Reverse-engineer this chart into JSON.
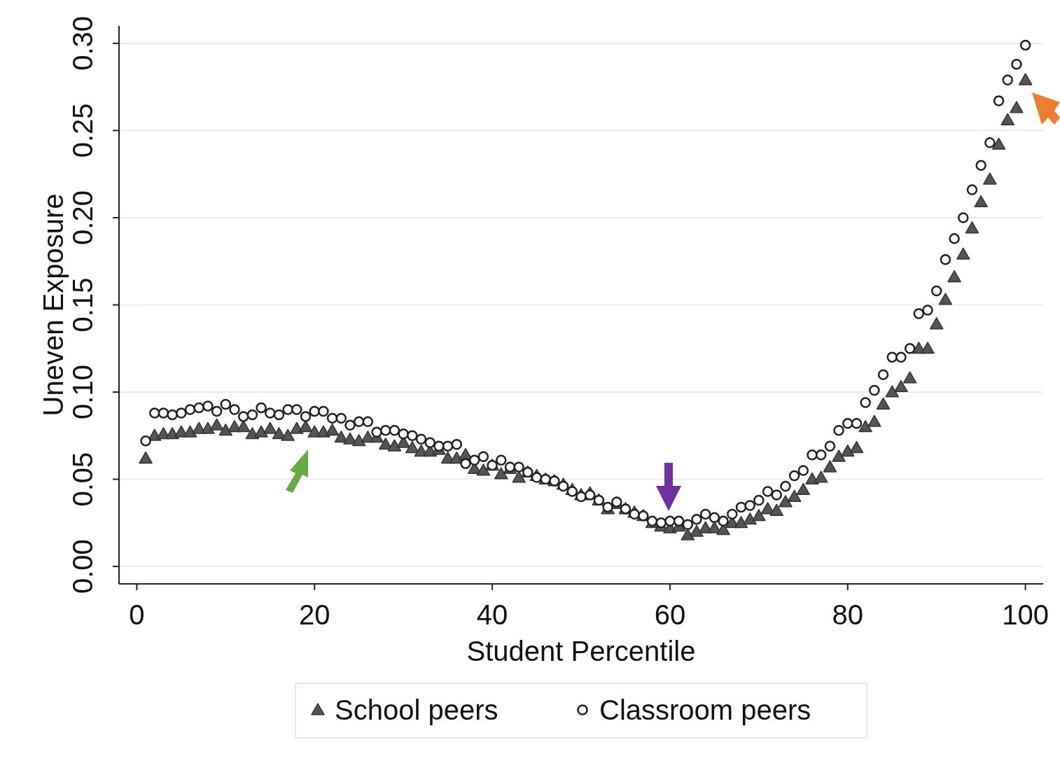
{
  "chart_data": {
    "type": "scatter",
    "xlabel": "Student Percentile",
    "ylabel": "Uneven Exposure",
    "x": [
      1,
      2,
      3,
      4,
      5,
      6,
      7,
      8,
      9,
      10,
      11,
      12,
      13,
      14,
      15,
      16,
      17,
      18,
      19,
      20,
      21,
      22,
      23,
      24,
      25,
      26,
      27,
      28,
      29,
      30,
      31,
      32,
      33,
      34,
      35,
      36,
      37,
      38,
      39,
      40,
      41,
      42,
      43,
      44,
      45,
      46,
      47,
      48,
      49,
      50,
      51,
      52,
      53,
      54,
      55,
      56,
      57,
      58,
      59,
      60,
      61,
      62,
      63,
      64,
      65,
      66,
      67,
      68,
      69,
      70,
      71,
      72,
      73,
      74,
      75,
      76,
      77,
      78,
      79,
      80,
      81,
      82,
      83,
      84,
      85,
      86,
      87,
      88,
      89,
      90,
      91,
      92,
      93,
      94,
      95,
      96,
      97,
      98,
      99,
      100
    ],
    "series": [
      {
        "name": "School peers",
        "color": "#555555",
        "marker": "triangle",
        "values": [
          0.062,
          0.075,
          0.076,
          0.076,
          0.077,
          0.077,
          0.079,
          0.079,
          0.081,
          0.078,
          0.08,
          0.08,
          0.076,
          0.077,
          0.079,
          0.076,
          0.075,
          0.079,
          0.08,
          0.077,
          0.077,
          0.078,
          0.074,
          0.073,
          0.072,
          0.074,
          0.074,
          0.07,
          0.069,
          0.071,
          0.068,
          0.066,
          0.066,
          0.067,
          0.062,
          0.062,
          0.064,
          0.056,
          0.055,
          0.058,
          0.053,
          0.056,
          0.051,
          0.054,
          0.052,
          0.05,
          0.049,
          0.047,
          0.044,
          0.041,
          0.042,
          0.038,
          0.033,
          0.036,
          0.033,
          0.031,
          0.029,
          0.025,
          0.023,
          0.022,
          0.023,
          0.018,
          0.02,
          0.022,
          0.022,
          0.021,
          0.025,
          0.025,
          0.027,
          0.029,
          0.033,
          0.032,
          0.037,
          0.04,
          0.044,
          0.05,
          0.051,
          0.057,
          0.063,
          0.066,
          0.068,
          0.08,
          0.083,
          0.093,
          0.1,
          0.103,
          0.108,
          0.125,
          0.125,
          0.139,
          0.153,
          0.166,
          0.179,
          0.194,
          0.209,
          0.222,
          0.242,
          0.256,
          0.263,
          0.279
        ]
      },
      {
        "name": "Classroom peers",
        "color": "#222222",
        "marker": "circle",
        "values": [
          0.072,
          0.088,
          0.088,
          0.087,
          0.088,
          0.09,
          0.091,
          0.092,
          0.089,
          0.093,
          0.09,
          0.086,
          0.087,
          0.091,
          0.088,
          0.087,
          0.09,
          0.09,
          0.086,
          0.089,
          0.089,
          0.085,
          0.085,
          0.081,
          0.083,
          0.083,
          0.077,
          0.078,
          0.078,
          0.076,
          0.075,
          0.073,
          0.071,
          0.069,
          0.069,
          0.07,
          0.059,
          0.061,
          0.063,
          0.058,
          0.061,
          0.057,
          0.057,
          0.054,
          0.051,
          0.05,
          0.049,
          0.046,
          0.043,
          0.04,
          0.041,
          0.038,
          0.034,
          0.037,
          0.033,
          0.03,
          0.029,
          0.026,
          0.025,
          0.026,
          0.026,
          0.024,
          0.027,
          0.03,
          0.028,
          0.026,
          0.03,
          0.034,
          0.035,
          0.038,
          0.043,
          0.041,
          0.046,
          0.052,
          0.055,
          0.064,
          0.064,
          0.069,
          0.078,
          0.082,
          0.082,
          0.094,
          0.101,
          0.11,
          0.12,
          0.12,
          0.125,
          0.145,
          0.147,
          0.158,
          0.176,
          0.188,
          0.2,
          0.216,
          0.23,
          0.243,
          0.267,
          0.279,
          0.288,
          0.299
        ]
      }
    ],
    "xlim": [
      -2,
      102
    ],
    "xticks": [
      0,
      20,
      40,
      60,
      80,
      100
    ],
    "ylim": [
      -0.01,
      0.31
    ],
    "yticks": [
      {
        "value": 0,
        "label": "0.00"
      },
      {
        "value": 0.05,
        "label": "0.05"
      },
      {
        "value": 0.1,
        "label": "0.10"
      },
      {
        "value": 0.15,
        "label": "0.15"
      },
      {
        "value": 0.2,
        "label": "0.20"
      },
      {
        "value": 0.25,
        "label": "0.25"
      },
      {
        "value": 0.3,
        "label": "0.30"
      }
    ],
    "grid": "y",
    "legend": "bottom"
  }
}
